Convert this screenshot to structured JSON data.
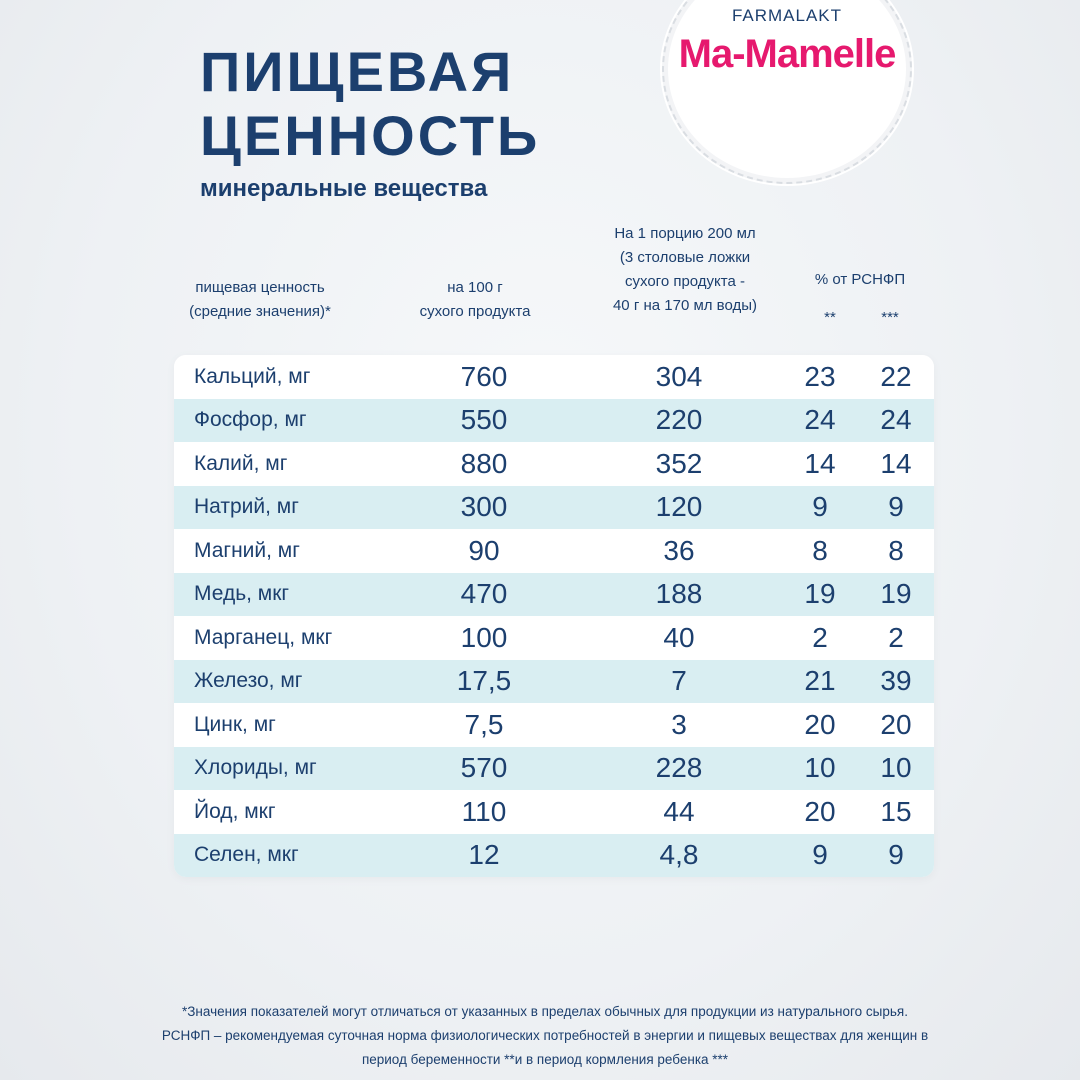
{
  "brand": {
    "maker": "FARMALAKT",
    "name": "Ma-Mamelle"
  },
  "title": {
    "line1": "ПИЩЕВАЯ",
    "line2": "ЦЕННОСТЬ",
    "subtitle": "минеральные вещества"
  },
  "table": {
    "headers": {
      "name_line1": "пищевая ценность",
      "name_line2": "(средние значения)*",
      "per100_line1": "на 100 г",
      "per100_line2": "сухого продукта",
      "portion_line1": "На 1 порцию 200 мл",
      "portion_line2": "(3 столовые ложки",
      "portion_line3": "сухого продукта -",
      "portion_line4": "40 г на 170 мл воды)",
      "pct": "% от РСНФП",
      "pct_col1": "**",
      "pct_col2": "***"
    },
    "rows": [
      {
        "name": "Кальций, мг",
        "per100": "760",
        "portion": "304",
        "pct_preg": "23",
        "pct_lact": "22"
      },
      {
        "name": "Фосфор, мг",
        "per100": "550",
        "portion": "220",
        "pct_preg": "24",
        "pct_lact": "24"
      },
      {
        "name": "Калий, мг",
        "per100": "880",
        "portion": "352",
        "pct_preg": "14",
        "pct_lact": "14"
      },
      {
        "name": "Натрий, мг",
        "per100": "300",
        "portion": "120",
        "pct_preg": "9",
        "pct_lact": "9"
      },
      {
        "name": "Магний, мг",
        "per100": "90",
        "portion": "36",
        "pct_preg": "8",
        "pct_lact": "8"
      },
      {
        "name": "Медь, мкг",
        "per100": "470",
        "portion": "188",
        "pct_preg": "19",
        "pct_lact": "19"
      },
      {
        "name": "Марганец, мкг",
        "per100": "100",
        "portion": "40",
        "pct_preg": "2",
        "pct_lact": "2"
      },
      {
        "name": "Железо, мг",
        "per100": "17,5",
        "portion": "7",
        "pct_preg": "21",
        "pct_lact": "39"
      },
      {
        "name": "Цинк, мг",
        "per100": "7,5",
        "portion": "3",
        "pct_preg": "20",
        "pct_lact": "20"
      },
      {
        "name": "Хлориды, мг",
        "per100": "570",
        "portion": "228",
        "pct_preg": "10",
        "pct_lact": "10"
      },
      {
        "name": "Йод, мкг",
        "per100": "110",
        "portion": "44",
        "pct_preg": "20",
        "pct_lact": "15"
      },
      {
        "name": "Селен, мкг",
        "per100": "12",
        "portion": "4,8",
        "pct_preg": "9",
        "pct_lact": "9"
      }
    ]
  },
  "footnote": {
    "line1": "*Значения показателей могут отличаться от указанных в пределах обычных для продукции из натурального сырья.",
    "line2": "РСНФП – рекомендуемая суточная норма физиологических потребностей в энергии и пищевых веществах для женщин в",
    "line3": "период беременности **и в период кормления ребенка ***"
  },
  "colors": {
    "navy": "#1c3f6e",
    "brand_pink": "#e6196e",
    "row_stripe": "#d9eef2"
  }
}
